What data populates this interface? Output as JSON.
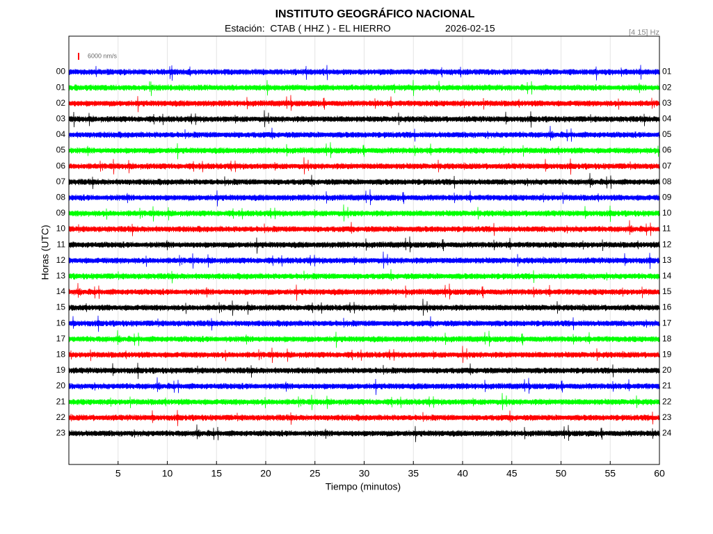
{
  "chart_data": {
    "type": "helicorder",
    "title": "INSTITUTO GEOGRÁFICO NACIONAL",
    "station": "Estación:  CTAB ( HHZ ) - EL HIERRO",
    "date": "2026-02-15",
    "filter": "[4 15] Hz",
    "scale_label": "6000 nm/s",
    "scale_color": "#ff0000",
    "x_label": "Tiempo (minutos)",
    "y_label": "Horas (UTC)",
    "xlim": [
      0,
      60
    ],
    "xticks": [
      5,
      10,
      15,
      20,
      25,
      30,
      35,
      40,
      45,
      50,
      55,
      60
    ],
    "grid": true,
    "colors": [
      "#0000ff",
      "#00ff00",
      "#ff0000",
      "#000000"
    ],
    "rows": [
      "00",
      "01",
      "02",
      "03",
      "04",
      "05",
      "06",
      "07",
      "08",
      "09",
      "10",
      "11",
      "12",
      "13",
      "14",
      "15",
      "16",
      "17",
      "18",
      "19",
      "20",
      "21",
      "22",
      "23"
    ],
    "rows_end": [
      "01",
      "02",
      "03",
      "04",
      "05",
      "06",
      "07",
      "08",
      "09",
      "10",
      "11",
      "12",
      "13",
      "14",
      "15",
      "16",
      "17",
      "18",
      "19",
      "20",
      "21",
      "22",
      "23",
      "24"
    ]
  }
}
